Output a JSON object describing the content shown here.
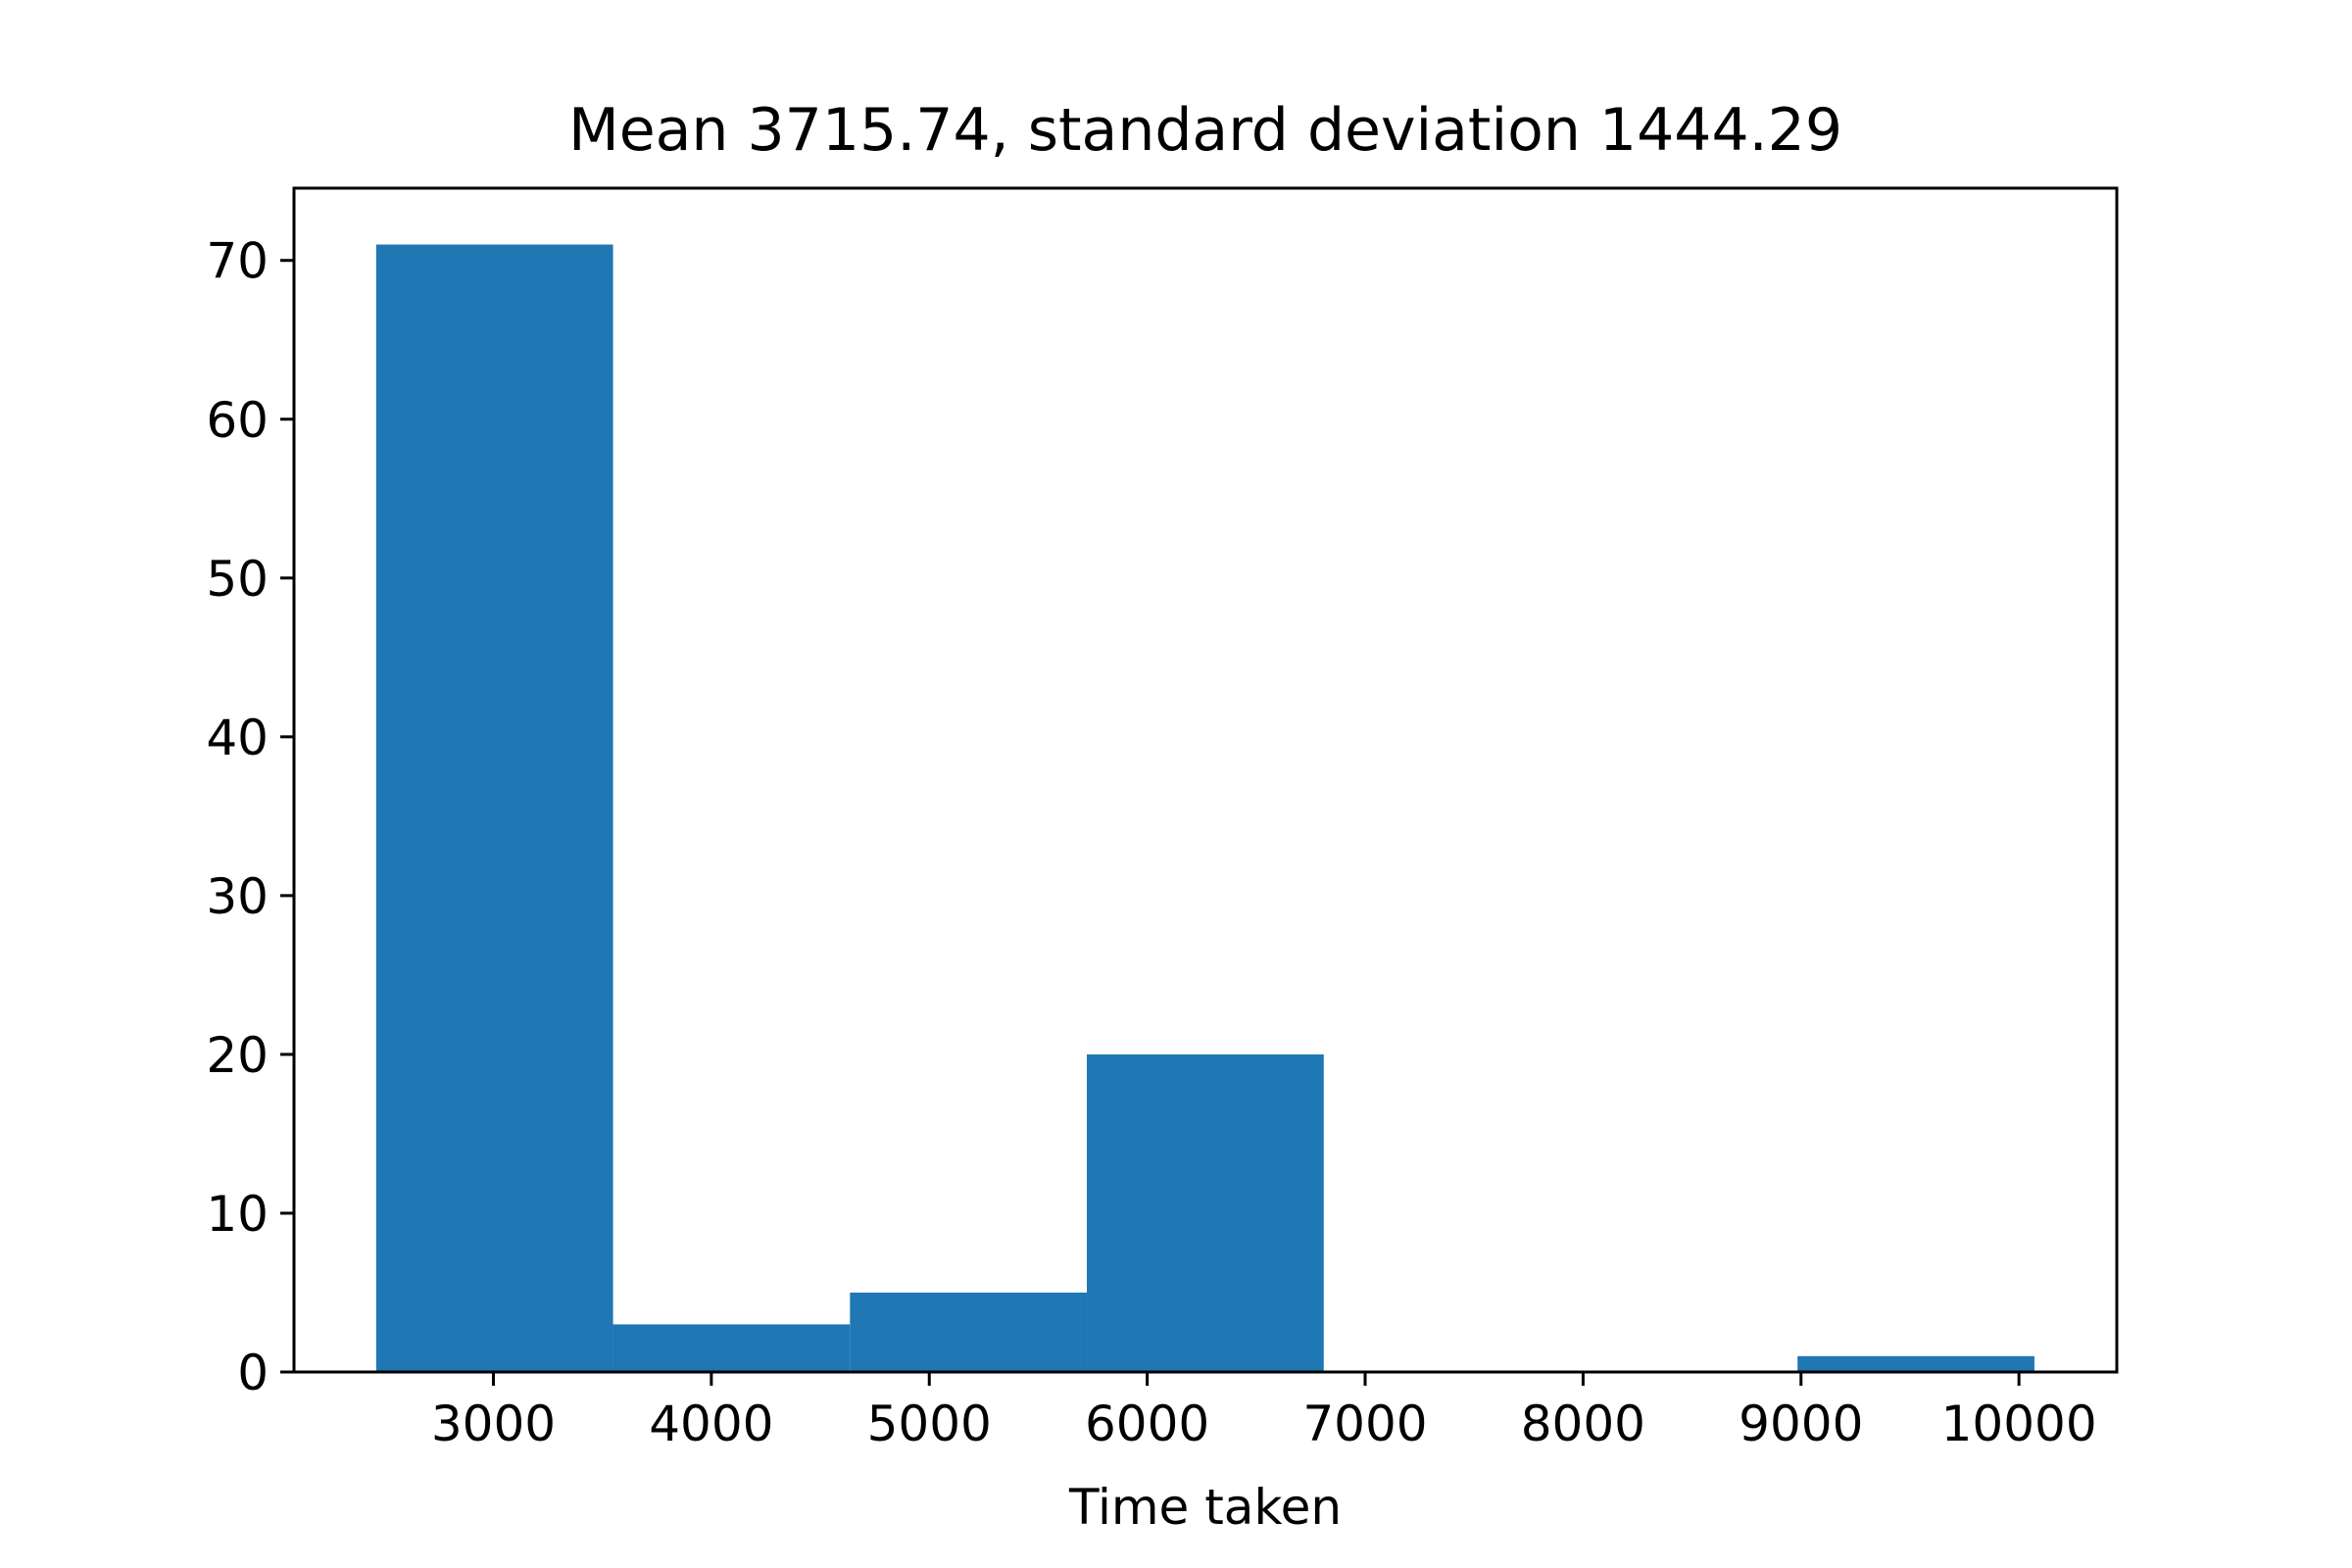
{
  "chart_data": {
    "type": "bar",
    "title": "Mean 3715.74, standard deviation 1444.29",
    "xlabel": "Time taken",
    "ylabel": "",
    "bin_edges": [
      2462,
      3549,
      4636,
      5723,
      6810,
      7897,
      8984,
      10071
    ],
    "values": [
      71,
      3,
      5,
      20,
      0,
      0,
      1
    ],
    "xlim": [
      2085,
      10449
    ],
    "ylim": [
      0,
      74.55
    ],
    "xticks": [
      3000,
      4000,
      5000,
      6000,
      7000,
      8000,
      9000,
      10000
    ],
    "yticks": [
      0,
      10,
      20,
      30,
      40,
      50,
      60,
      70
    ],
    "bar_color": "#1f77b4",
    "grid": false,
    "legend": "none"
  }
}
